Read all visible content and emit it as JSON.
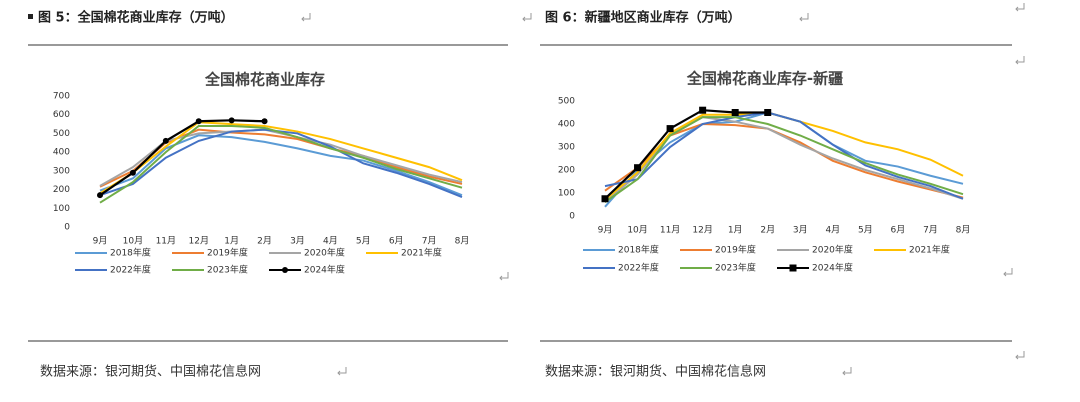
{
  "captions": [
    "图 5：全国棉花商业库存（万吨）",
    "图 6：新疆地区商业库存（万吨）"
  ],
  "sources": [
    "数据来源：银河期货、中国棉花信息网",
    "数据来源：银河期货、中国棉花信息网"
  ],
  "chart_data": [
    {
      "type": "line",
      "title": "全国棉花商业库存",
      "categories": [
        "9月",
        "10月",
        "11月",
        "12月",
        "1月",
        "2月",
        "3月",
        "4月",
        "5月",
        "6月",
        "7月",
        "8月"
      ],
      "ylim": [
        0,
        700
      ],
      "yticks": [
        0,
        100,
        200,
        300,
        400,
        500,
        600,
        700
      ],
      "grid": false,
      "series": [
        {
          "name": "2018年度",
          "color": "#5b9bd5",
          "values": [
            195,
            260,
            420,
            490,
            480,
            455,
            420,
            380,
            355,
            300,
            240,
            170
          ]
        },
        {
          "name": "2019年度",
          "color": "#ed7d31",
          "values": [
            215,
            300,
            450,
            520,
            505,
            495,
            470,
            420,
            380,
            320,
            270,
            230
          ]
        },
        {
          "name": "2020年度",
          "color": "#a5a5a5",
          "values": [
            220,
            320,
            460,
            500,
            510,
            520,
            480,
            440,
            380,
            330,
            280,
            240
          ]
        },
        {
          "name": "2021年度",
          "color": "#ffc000",
          "values": [
            180,
            290,
            430,
            560,
            550,
            540,
            510,
            470,
            420,
            370,
            320,
            250
          ]
        },
        {
          "name": "2022年度",
          "color": "#4472c4",
          "values": [
            170,
            230,
            370,
            460,
            510,
            520,
            500,
            430,
            340,
            290,
            230,
            160
          ]
        },
        {
          "name": "2023年度",
          "color": "#70ad47",
          "values": [
            130,
            240,
            400,
            540,
            540,
            530,
            480,
            420,
            370,
            310,
            260,
            210
          ]
        },
        {
          "name": "2024年度",
          "color": "#000000",
          "marker": "circle",
          "values": [
            170,
            290,
            460,
            565,
            570,
            565,
            null,
            null,
            null,
            null,
            null,
            null
          ]
        }
      ]
    },
    {
      "type": "line",
      "title": "全国棉花商业库存-新疆",
      "categories": [
        "9月",
        "10月",
        "11月",
        "12月",
        "1月",
        "2月",
        "3月",
        "4月",
        "5月",
        "6月",
        "7月",
        "8月"
      ],
      "ylim": [
        0,
        500
      ],
      "yticks": [
        0,
        100,
        200,
        300,
        400,
        500
      ],
      "grid": false,
      "series": [
        {
          "name": "2018年度",
          "color": "#5b9bd5",
          "values": [
            40,
            200,
            320,
            400,
            410,
            450,
            410,
            310,
            240,
            215,
            175,
            140
          ]
        },
        {
          "name": "2019年度",
          "color": "#ed7d31",
          "values": [
            110,
            210,
            350,
            400,
            395,
            380,
            320,
            240,
            190,
            150,
            115,
            80
          ]
        },
        {
          "name": "2020年度",
          "color": "#a5a5a5",
          "values": [
            60,
            180,
            350,
            430,
            410,
            380,
            310,
            250,
            200,
            160,
            120,
            75
          ]
        },
        {
          "name": "2021年度",
          "color": "#ffc000",
          "values": [
            70,
            190,
            360,
            440,
            440,
            450,
            410,
            370,
            320,
            290,
            245,
            175
          ]
        },
        {
          "name": "2022年度",
          "color": "#4472c4",
          "values": [
            130,
            160,
            300,
            400,
            430,
            450,
            410,
            310,
            220,
            170,
            130,
            75
          ]
        },
        {
          "name": "2023年度",
          "color": "#70ad47",
          "values": [
            60,
            160,
            350,
            430,
            430,
            400,
            350,
            290,
            230,
            180,
            140,
            95
          ]
        },
        {
          "name": "2024年度",
          "color": "#000000",
          "marker": "square",
          "values": [
            75,
            210,
            380,
            460,
            450,
            450,
            null,
            null,
            null,
            null,
            null,
            null
          ]
        }
      ]
    }
  ]
}
